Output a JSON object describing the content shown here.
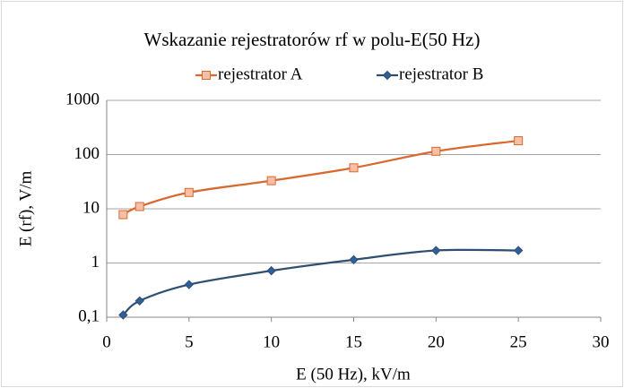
{
  "chart_data": {
    "type": "line",
    "title": "Wskazanie rejestratorów rf w polu-E(50 Hz)",
    "x_label": "E (50 Hz), kV/m",
    "y_label": "E (rf), V/m",
    "x": [
      1,
      2,
      5,
      10,
      15,
      20,
      25
    ],
    "series": [
      {
        "name": "rejestrator A",
        "color": "#d9692f",
        "marker": "square",
        "marker_fill": "#f7bfa8",
        "values": [
          7.8,
          11,
          20,
          33,
          57,
          115,
          180
        ]
      },
      {
        "name": "rejestrator B",
        "color": "#2f4f70",
        "marker": "diamond",
        "marker_fill": "#2f5f9a",
        "values": [
          0.11,
          0.2,
          0.4,
          0.72,
          1.15,
          1.7,
          1.7
        ]
      }
    ],
    "xlim": [
      0,
      30
    ],
    "xticks": [
      0,
      5,
      10,
      15,
      20,
      25,
      30
    ],
    "ylim": [
      0.1,
      1000
    ],
    "yticks": [
      {
        "value": 0.1,
        "label": "0,1"
      },
      1,
      10,
      100,
      1000
    ],
    "y_log": true,
    "grid": true,
    "legend_position": "top"
  }
}
